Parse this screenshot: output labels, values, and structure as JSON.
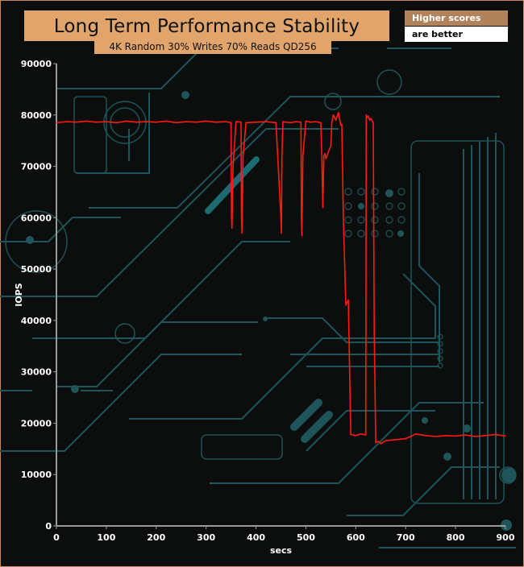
{
  "header": {
    "title": "Long Term Performance Stability",
    "subtitle": "4K Random 30% Writes 70% Reads QD256"
  },
  "note": {
    "line1": "Higher scores",
    "line2": "are better"
  },
  "colors": {
    "series": "#ff1a12",
    "axis": "#9a9a9a",
    "background": "#0c0d0d",
    "circuit": "#1f5c60",
    "banner": "#e1a56c"
  },
  "chart_data": {
    "type": "line",
    "title": "Long Term Performance Stability",
    "subtitle": "4K Random 30% Writes 70% Reads QD256",
    "xlabel": "secs",
    "ylabel": "IOPS",
    "xlim": [
      0,
      900
    ],
    "ylim": [
      0,
      90000
    ],
    "x_ticks": [
      "0",
      "100",
      "200",
      "300",
      "400",
      "500",
      "600",
      "700",
      "800",
      "900"
    ],
    "y_ticks": [
      "0",
      "10000",
      "20000",
      "30000",
      "40000",
      "50000",
      "60000",
      "70000",
      "80000",
      "90000"
    ],
    "grid": false,
    "series": [
      {
        "name": "",
        "color": "#ff1a12",
        "x": [
          0,
          20,
          40,
          60,
          80,
          100,
          120,
          140,
          160,
          180,
          200,
          220,
          240,
          260,
          280,
          300,
          320,
          340,
          350,
          351,
          352,
          354,
          360,
          370,
          371,
          372,
          374,
          380,
          400,
          420,
          440,
          450,
          451,
          452,
          454,
          460,
          470,
          480,
          490,
          491,
          492,
          494,
          500,
          510,
          520,
          530,
          532,
          534,
          536,
          538,
          540,
          545,
          550,
          552,
          555,
          560,
          565,
          570,
          572,
          575,
          580,
          585,
          590,
          600,
          610,
          620,
          621,
          623,
          625,
          628,
          630,
          635,
          637,
          640,
          645,
          650,
          660,
          680,
          700,
          710,
          720,
          740,
          760,
          780,
          800,
          820,
          840,
          860,
          880,
          900
        ],
        "y": [
          78500,
          78700,
          78600,
          78800,
          78600,
          78700,
          78500,
          78800,
          78600,
          78700,
          78600,
          78800,
          78500,
          78700,
          78600,
          78800,
          78600,
          78700,
          78500,
          60000,
          58000,
          70000,
          78700,
          78600,
          60000,
          57000,
          72000,
          78500,
          78600,
          78700,
          78500,
          60000,
          57000,
          72000,
          78700,
          78600,
          78500,
          78700,
          78600,
          60000,
          56500,
          72000,
          78800,
          78600,
          78700,
          78500,
          72000,
          62000,
          72000,
          72500,
          71500,
          72800,
          74000,
          78500,
          80000,
          79000,
          80500,
          78000,
          78200,
          60000,
          43000,
          44000,
          17800,
          17600,
          17900,
          17700,
          80000,
          79500,
          79800,
          79000,
          79300,
          78500,
          38000,
          16200,
          16500,
          16000,
          16600,
          16800,
          17000,
          17400,
          17900,
          17600,
          17400,
          17600,
          17500,
          17700,
          17400,
          17600,
          17800,
          17500
        ]
      }
    ]
  }
}
